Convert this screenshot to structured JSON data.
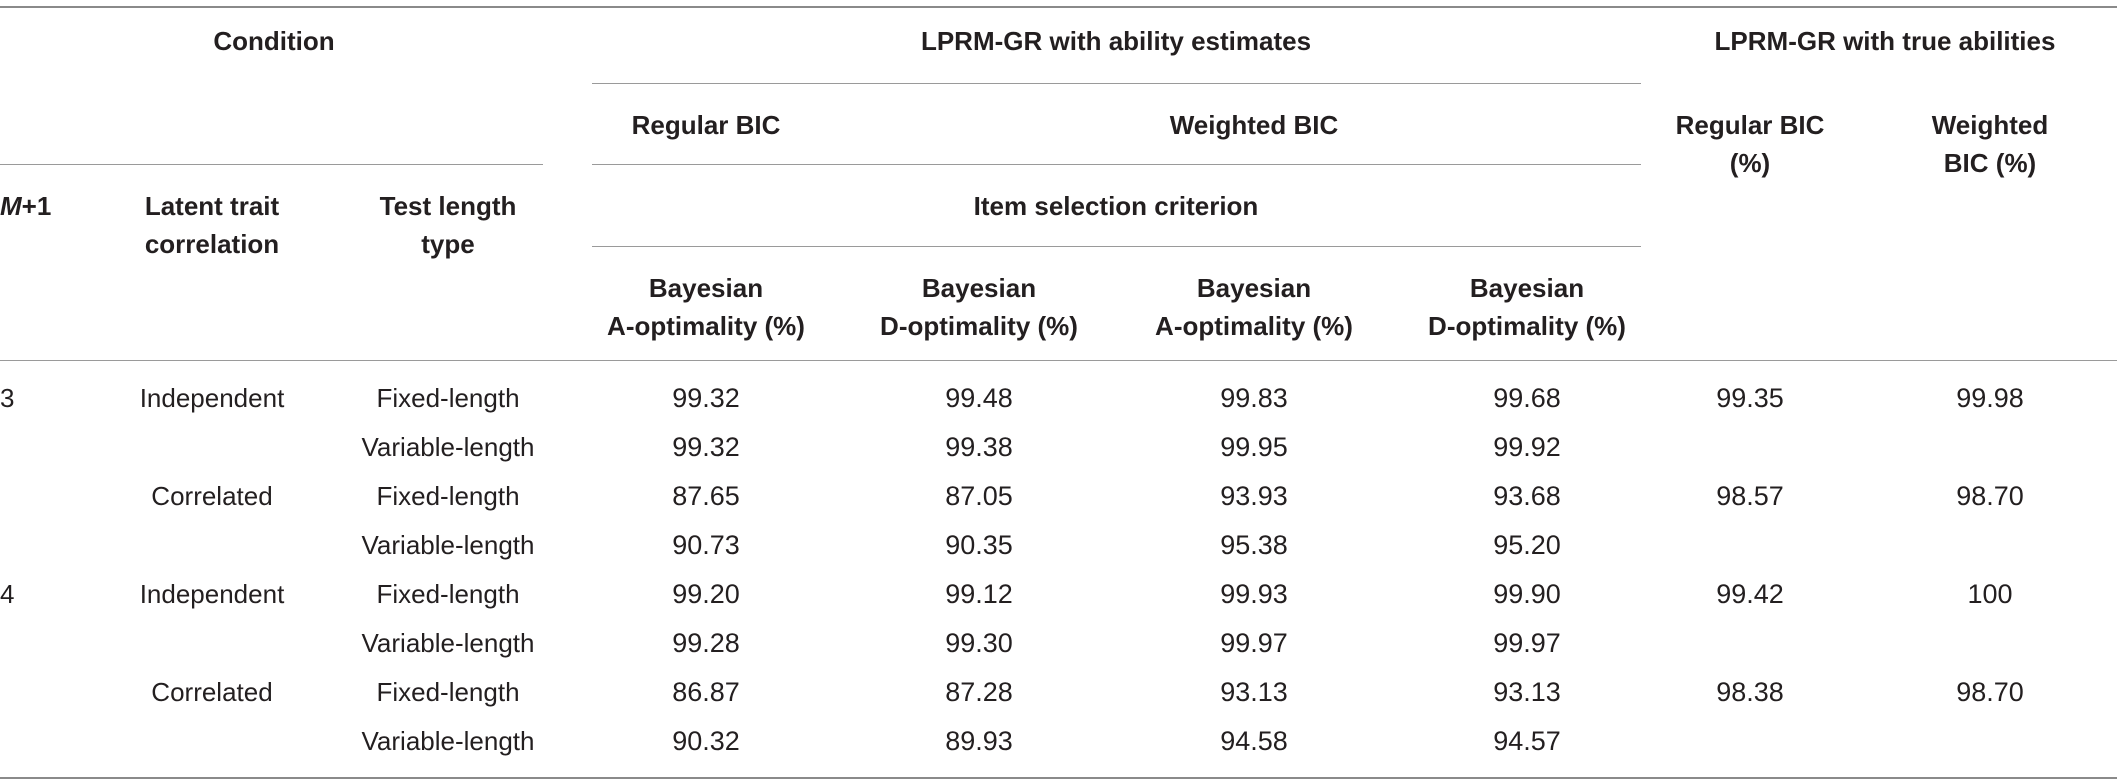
{
  "header": {
    "condition": "Condition",
    "estimates_group": "LPRM-GR with ability estimates",
    "true_group": "LPRM-GR with true abilities",
    "regular_bic": "Regular BIC",
    "weighted_bic": "Weighted BIC",
    "item_selection": "Item selection criterion",
    "m_var": "M",
    "m_suffix": "+1",
    "latent_line1": "Latent trait",
    "latent_line2": "correlation",
    "testlen_line1": "Test length",
    "testlen_line2": "type",
    "bayes": "Bayesian",
    "a_opt": "A-optimality (%)",
    "d_opt": "D-optimality (%)",
    "true_regular_line1": "Regular BIC",
    "true_regular_line2": "(%)",
    "true_weighted_line1": "Weighted",
    "true_weighted_line2": "BIC (%)"
  },
  "rows": [
    {
      "m": "3",
      "corr": "Independent",
      "len": "Fixed-length",
      "v1": "99.32",
      "v2": "99.48",
      "v3": "99.83",
      "v4": "99.68",
      "v5": "99.35",
      "v6": "99.98"
    },
    {
      "m": "",
      "corr": "",
      "len": "Variable-length",
      "v1": "99.32",
      "v2": "99.38",
      "v3": "99.95",
      "v4": "99.92",
      "v5": "",
      "v6": ""
    },
    {
      "m": "",
      "corr": "Correlated",
      "len": "Fixed-length",
      "v1": "87.65",
      "v2": "87.05",
      "v3": "93.93",
      "v4": "93.68",
      "v5": "98.57",
      "v6": "98.70"
    },
    {
      "m": "",
      "corr": "",
      "len": "Variable-length",
      "v1": "90.73",
      "v2": "90.35",
      "v3": "95.38",
      "v4": "95.20",
      "v5": "",
      "v6": ""
    },
    {
      "m": "4",
      "corr": "Independent",
      "len": "Fixed-length",
      "v1": "99.20",
      "v2": "99.12",
      "v3": "99.93",
      "v4": "99.90",
      "v5": "99.42",
      "v6": "100"
    },
    {
      "m": "",
      "corr": "",
      "len": "Variable-length",
      "v1": "99.28",
      "v2": "99.30",
      "v3": "99.97",
      "v4": "99.97",
      "v5": "",
      "v6": ""
    },
    {
      "m": "",
      "corr": "Correlated",
      "len": "Fixed-length",
      "v1": "86.87",
      "v2": "87.28",
      "v3": "93.13",
      "v4": "93.13",
      "v5": "98.38",
      "v6": "98.70"
    },
    {
      "m": "",
      "corr": "",
      "len": "Variable-length",
      "v1": "90.32",
      "v2": "89.93",
      "v3": "94.58",
      "v4": "94.57",
      "v5": "",
      "v6": ""
    }
  ]
}
